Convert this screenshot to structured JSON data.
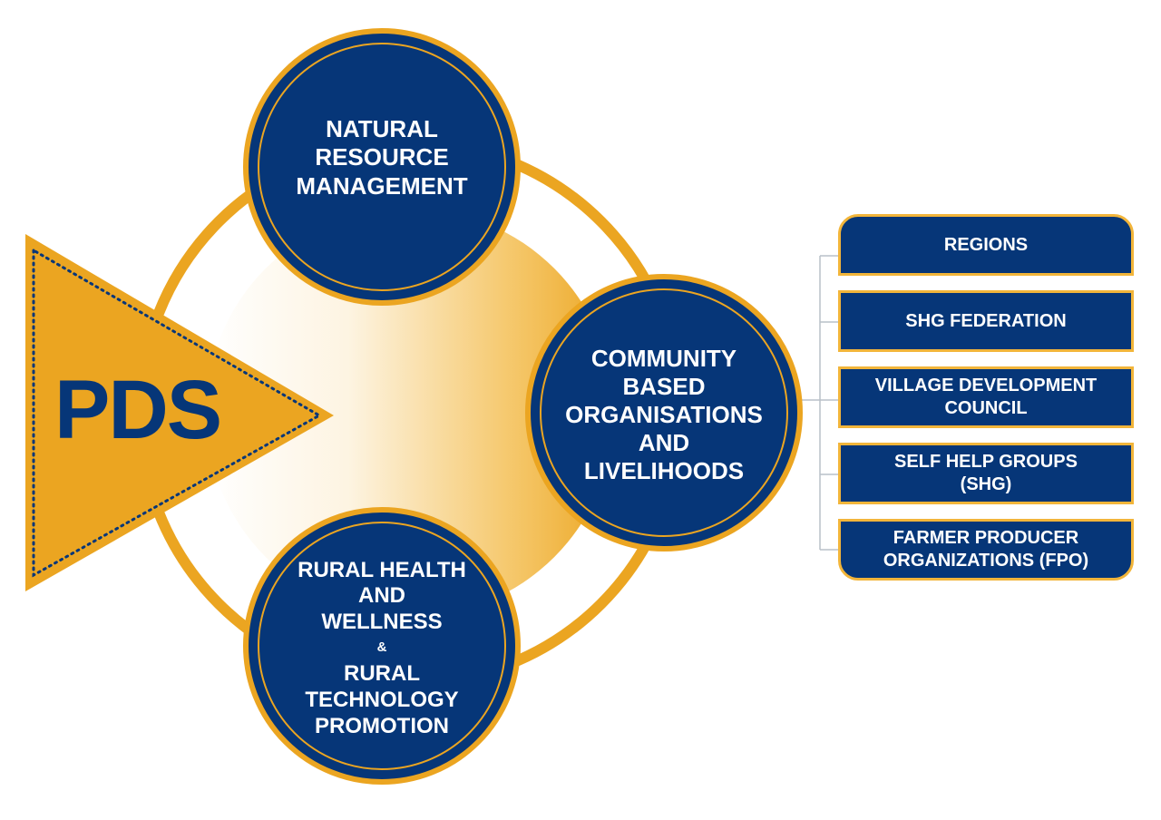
{
  "logo": {
    "text": "PDS"
  },
  "circles": {
    "natural": {
      "lines": [
        "NATURAL",
        "RESOURCE",
        "MANAGEMENT"
      ]
    },
    "community": {
      "lines": [
        "COMMUNITY",
        "BASED",
        "ORGANISATIONS",
        "AND",
        "LIVELIHOODS"
      ]
    },
    "health": {
      "lines_top": [
        "RURAL HEALTH",
        "AND",
        "WELLNESS"
      ],
      "connector": "&",
      "lines_bottom": [
        "RURAL",
        "TECHNOLOGY",
        "PROMOTION"
      ]
    }
  },
  "boxes": [
    {
      "lines": [
        "REGIONS"
      ]
    },
    {
      "lines": [
        "SHG FEDERATION"
      ]
    },
    {
      "lines": [
        "VILLAGE DEVELOPMENT",
        "COUNCIL"
      ]
    },
    {
      "lines": [
        "SELF HELP GROUPS",
        "(SHG)"
      ]
    },
    {
      "lines": [
        "FARMER PRODUCER",
        "ORGANIZATIONS (FPO)"
      ]
    }
  ],
  "colors": {
    "navy": "#063678",
    "gold": "#F2B53A",
    "gold_dark": "#EBA521",
    "connector_gray": "#b9c0c8"
  }
}
